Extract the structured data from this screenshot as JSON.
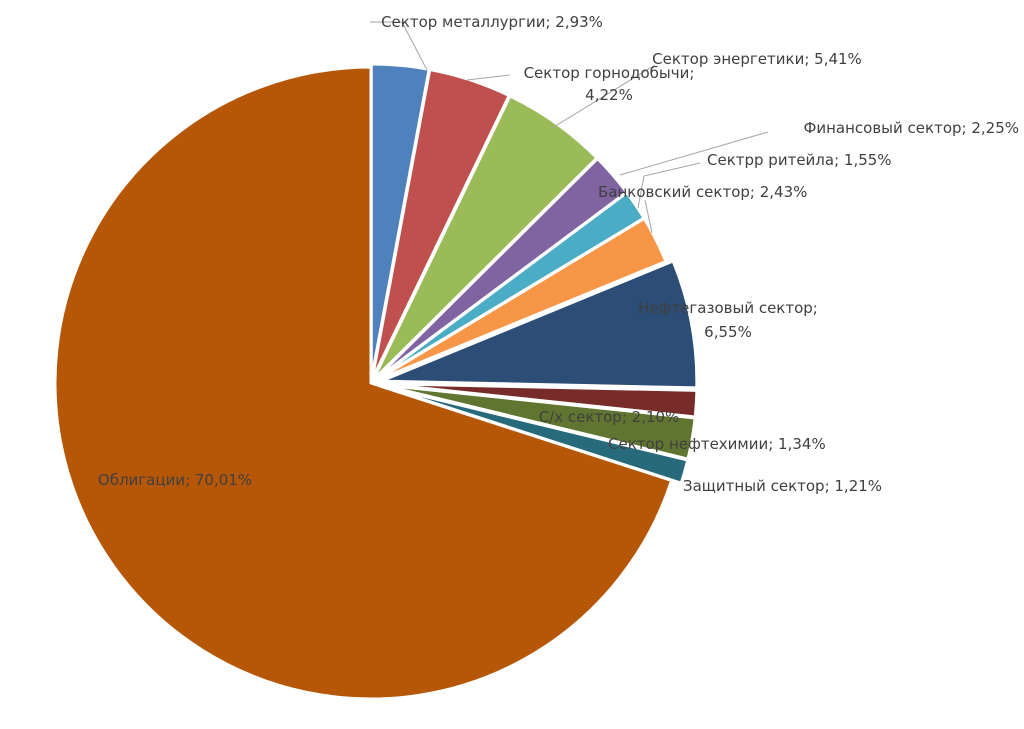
{
  "chart_data": {
    "type": "pie",
    "title": "",
    "series": [
      {
        "label": "Сектор металлургии",
        "value": 2.93,
        "display": "Сектор металлургии; 2,93%",
        "color": "#4f81bd"
      },
      {
        "label": "Сектор горнодобычи",
        "value": 4.22,
        "display": "Сектор горнодобычи;\n4,22%",
        "color": "#c0504d"
      },
      {
        "label": "Сектор энергетики",
        "value": 5.41,
        "display": "Сектор энергетики; 5,41%",
        "color": "#9bbb59"
      },
      {
        "label": "Финансовый сектор",
        "value": 2.25,
        "display": "Финансовый сектор; 2,25%",
        "color": "#8064a2"
      },
      {
        "label": "Сектрр ритейла",
        "value": 1.55,
        "display": "Сектрр ритейла; 1,55%",
        "color": "#4bacc6"
      },
      {
        "label": "Банковский сектор",
        "value": 2.43,
        "display": "Банковский сектор; 2,43%",
        "color": "#f79646"
      },
      {
        "label": "Нефтегазовый сектор",
        "value": 6.55,
        "display": "Нефтегазовый сектор;\n6,55%",
        "color": "#2c4d75"
      },
      {
        "label": "Сектор нефтехимии",
        "value": 1.34,
        "display": "Сектор нефтехимии; 1,34%",
        "color": "#772c2a"
      },
      {
        "label": "С/х сектор",
        "value": 2.1,
        "display": "С/х сектор; 2,10%",
        "color": "#5f7530"
      },
      {
        "label": "Защитный сектор",
        "value": 1.21,
        "display": "Защитный сектор; 1,21%",
        "color": "#276a7c"
      },
      {
        "label": "Облигации",
        "value": 70.01,
        "display": "Облигации; 70,01%",
        "color": "#b65708"
      }
    ]
  }
}
